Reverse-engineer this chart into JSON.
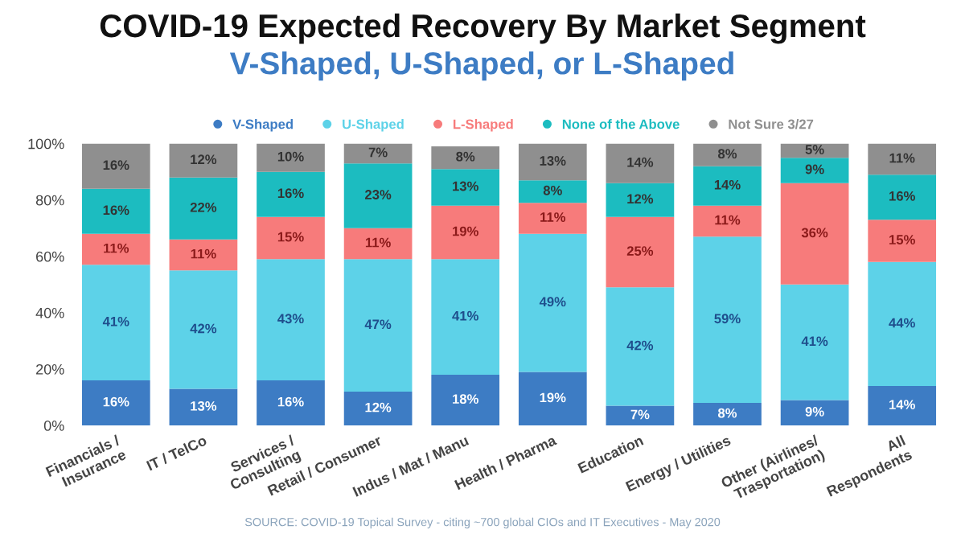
{
  "chart_data": {
    "type": "bar",
    "stacked": true,
    "title": "COVID-19 Expected Recovery By Market Segment",
    "subtitle": "V-Shaped, U-Shaped, or L-Shaped",
    "categories": [
      "Financials /\nInsurance",
      "IT / TelCo",
      "Services /\nConsulting",
      "Retail / Consumer",
      "Indus / Mat / Manu",
      "Health / Pharma",
      "Education",
      "Energy / Utilities",
      "Other (Airlines/\nTrasportation)",
      "All\nRespondents"
    ],
    "series": [
      {
        "name": "V-Shaped",
        "color": "#3d7cc4",
        "values": [
          16,
          13,
          16,
          12,
          18,
          19,
          7,
          8,
          9,
          14
        ],
        "value_labels": [
          "16%",
          "13%",
          "16%",
          "12%",
          "18%",
          "19%",
          "7%",
          "8%",
          "9%",
          "14%"
        ]
      },
      {
        "name": "U-Shaped",
        "color": "#5dd2e8",
        "values": [
          41,
          42,
          43,
          47,
          41,
          49,
          42,
          59,
          41,
          44
        ],
        "value_labels": [
          "41%",
          "42%",
          "43%",
          "47%",
          "41%",
          "49%",
          "42%",
          "59%",
          "41%",
          "44%"
        ]
      },
      {
        "name": "L-Shaped",
        "color": "#f77b7b",
        "values": [
          11,
          11,
          15,
          11,
          19,
          11,
          25,
          11,
          36,
          15
        ],
        "value_labels": [
          "11%",
          "11%",
          "15%",
          "11%",
          "19%",
          "11%",
          "25%",
          "11%",
          "36%",
          "15%"
        ]
      },
      {
        "name": "None of the Above",
        "color": "#1cbcc0",
        "values": [
          16,
          22,
          16,
          23,
          13,
          8,
          12,
          14,
          9,
          16
        ],
        "value_labels": [
          "16%",
          "22%",
          "16%",
          "23%",
          "13%",
          "8%",
          "12%",
          "14%",
          "9%",
          "16%"
        ]
      },
      {
        "name": "Not Sure 3/27",
        "color": "#8f8f8f",
        "values": [
          16,
          12,
          10,
          7,
          8,
          13,
          14,
          8,
          5,
          11
        ],
        "value_labels": [
          "16%",
          "12%",
          "10%",
          "7%",
          "8%",
          "13%",
          "14%",
          "8%",
          "5%",
          "11%"
        ]
      }
    ],
    "ylim": [
      0,
      100
    ],
    "yticks": [
      {
        "value": 0,
        "label": "0%"
      },
      {
        "value": 20,
        "label": "20%"
      },
      {
        "value": 40,
        "label": "40%"
      },
      {
        "value": 60,
        "label": "60%"
      },
      {
        "value": 80,
        "label": "80%"
      },
      {
        "value": 100,
        "label": "100%"
      }
    ],
    "legend": "top",
    "grid": false,
    "annotations": [
      "SOURCE: COVID-19 Topical Survey - citing ~700 global CIOs and IT Executives - May 2020"
    ]
  }
}
